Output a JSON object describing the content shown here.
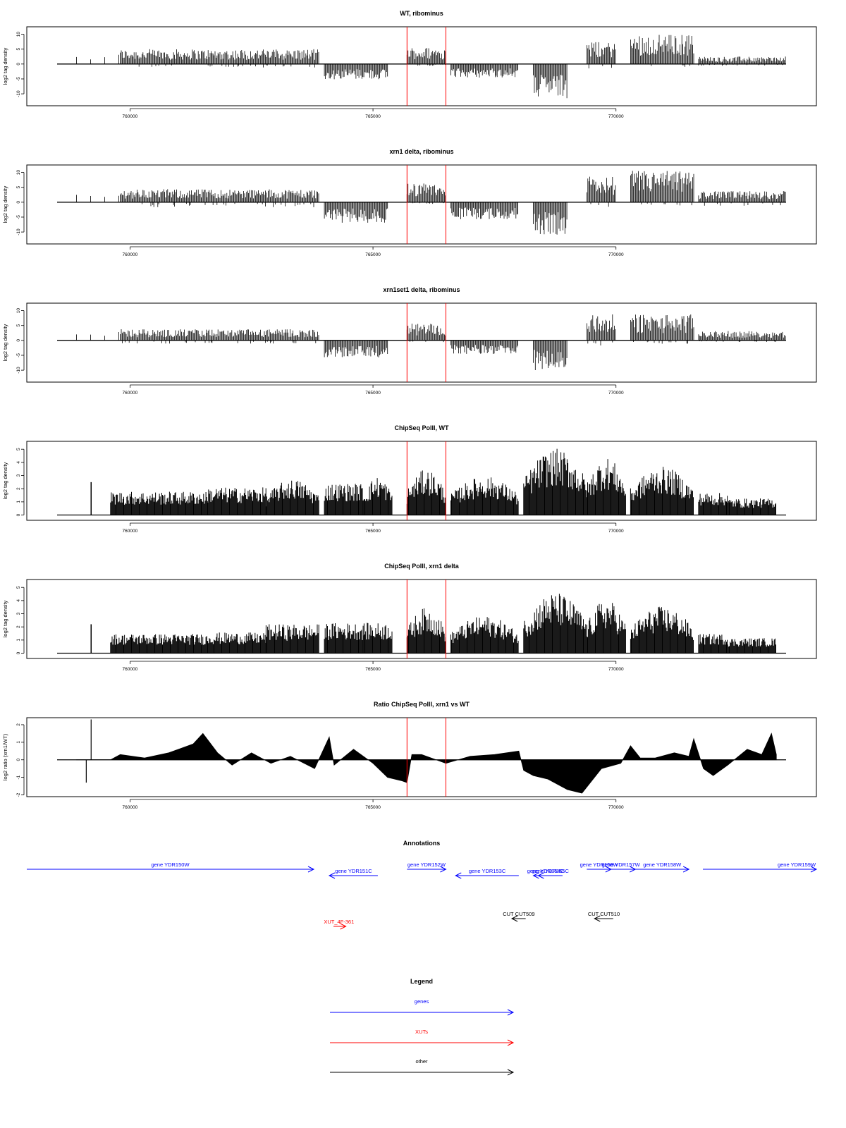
{
  "colors": {
    "signal": "#000000",
    "marker": "#ff0000",
    "genes": "#0000ff",
    "xuts": "#ff0000",
    "other": "#000000"
  },
  "marker_positions": [
    765700,
    766500
  ],
  "chart_data": [
    {
      "type": "bar",
      "title": "WT, ribominus",
      "ylabel": "log2 tag density",
      "xlim": [
        758500,
        773500
      ],
      "ylim": [
        -14,
        12.5
      ],
      "yticks": [
        10,
        5,
        0,
        -5,
        -10
      ],
      "xticks": [
        760000,
        765000,
        770000
      ],
      "regions": [
        {
          "x": [
            758900,
            759800
          ],
          "sense": 2.5,
          "anti": 0
        },
        {
          "x": [
            759800,
            763900
          ],
          "sense": 4,
          "anti": -1
        },
        {
          "x": [
            764000,
            765300
          ],
          "sense": 0,
          "anti": -4.5
        },
        {
          "x": [
            765700,
            766500
          ],
          "sense": 4.5,
          "anti": -0.5
        },
        {
          "x": [
            766600,
            768000
          ],
          "sense": 0,
          "anti": -4
        },
        {
          "x": [
            768300,
            769000
          ],
          "sense": 0,
          "anti": -10
        },
        {
          "x": [
            769400,
            770000
          ],
          "sense": 6,
          "anti": -1.5
        },
        {
          "x": [
            770300,
            771600
          ],
          "sense": 8,
          "anti": -1
        },
        {
          "x": [
            771700,
            773500
          ],
          "sense": 2,
          "anti": -0.5
        }
      ]
    },
    {
      "type": "bar",
      "title": "xrn1 delta, ribominus",
      "ylabel": "log2 tag density",
      "xlim": [
        758500,
        773500
      ],
      "ylim": [
        -14,
        12.5
      ],
      "yticks": [
        10,
        5,
        0,
        -5,
        -10
      ],
      "xticks": [
        760000,
        765000,
        770000
      ],
      "regions": [
        {
          "x": [
            758900,
            759800
          ],
          "sense": 2.5,
          "anti": 0
        },
        {
          "x": [
            759800,
            763900
          ],
          "sense": 3.5,
          "anti": -1.5
        },
        {
          "x": [
            764000,
            765300
          ],
          "sense": 0,
          "anti": -6
        },
        {
          "x": [
            765700,
            766500
          ],
          "sense": 5,
          "anti": -0.5
        },
        {
          "x": [
            766600,
            768000
          ],
          "sense": 0,
          "anti": -5
        },
        {
          "x": [
            768300,
            769000
          ],
          "sense": 0,
          "anti": -9.5
        },
        {
          "x": [
            769400,
            770000
          ],
          "sense": 7,
          "anti": -1.5
        },
        {
          "x": [
            770300,
            771600
          ],
          "sense": 8.5,
          "anti": -1
        },
        {
          "x": [
            771700,
            773500
          ],
          "sense": 3,
          "anti": -1
        }
      ]
    },
    {
      "type": "bar",
      "title": "xrn1set1 delta, ribominus",
      "ylabel": "log2 tag density",
      "xlim": [
        758500,
        773500
      ],
      "ylim": [
        -14,
        12.5
      ],
      "yticks": [
        10,
        5,
        0,
        -5,
        -10
      ],
      "xticks": [
        760000,
        765000,
        770000
      ],
      "regions": [
        {
          "x": [
            758900,
            759800
          ],
          "sense": 2.5,
          "anti": 0
        },
        {
          "x": [
            759800,
            763900
          ],
          "sense": 3,
          "anti": -1
        },
        {
          "x": [
            764000,
            765300
          ],
          "sense": 0,
          "anti": -5
        },
        {
          "x": [
            765700,
            766500
          ],
          "sense": 4.5,
          "anti": -0.5
        },
        {
          "x": [
            766600,
            768000
          ],
          "sense": 0,
          "anti": -4
        },
        {
          "x": [
            768300,
            769000
          ],
          "sense": 0,
          "anti": -9
        },
        {
          "x": [
            769400,
            770000
          ],
          "sense": 7,
          "anti": -1.5
        },
        {
          "x": [
            770300,
            771600
          ],
          "sense": 7,
          "anti": -1
        },
        {
          "x": [
            771700,
            773500
          ],
          "sense": 2.5,
          "anti": -0.5
        }
      ]
    },
    {
      "type": "bar",
      "title": "ChipSeq PolII, WT",
      "ylabel": "log2 tag density",
      "xlim": [
        758500,
        773500
      ],
      "ylim": [
        -0.4,
        5.6
      ],
      "yticks": [
        0,
        1,
        2,
        3,
        4,
        5
      ],
      "xticks": [
        760000,
        765000,
        770000
      ],
      "regions": [
        {
          "x": [
            759600,
            761600
          ],
          "level": 1.7
        },
        {
          "x": [
            761600,
            762800
          ],
          "level": 2.0
        },
        {
          "x": [
            762800,
            763900
          ],
          "level": 2.6
        },
        {
          "x": [
            764000,
            764800
          ],
          "level": 2.3
        },
        {
          "x": [
            764800,
            765400
          ],
          "level": 2.8
        },
        {
          "x": [
            765700,
            766500
          ],
          "level": 3.3
        },
        {
          "x": [
            766600,
            768000
          ],
          "level": 2.8
        },
        {
          "x": [
            768100,
            769400
          ],
          "level": 4.8
        },
        {
          "x": [
            769400,
            770200
          ],
          "level": 4.2
        },
        {
          "x": [
            770300,
            771600
          ],
          "level": 3.5
        },
        {
          "x": [
            771700,
            772300
          ],
          "level": 1.6
        },
        {
          "x": [
            772300,
            773300
          ],
          "level": 1.2
        }
      ],
      "spikes": [
        {
          "x": 759200,
          "y": 2.5
        }
      ]
    },
    {
      "type": "bar",
      "title": "ChipSeq PolII, xrn1 delta",
      "ylabel": "log2 tag density",
      "xlim": [
        758500,
        773500
      ],
      "ylim": [
        -0.4,
        5.6
      ],
      "yticks": [
        0,
        1,
        2,
        3,
        4,
        5
      ],
      "xticks": [
        760000,
        765000,
        770000
      ],
      "regions": [
        {
          "x": [
            759600,
            761600
          ],
          "level": 1.4
        },
        {
          "x": [
            761600,
            762800
          ],
          "level": 1.5
        },
        {
          "x": [
            762800,
            763900
          ],
          "level": 2.1
        },
        {
          "x": [
            764000,
            764800
          ],
          "level": 2.2
        },
        {
          "x": [
            764800,
            765400
          ],
          "level": 2.2
        },
        {
          "x": [
            765700,
            766500
          ],
          "level": 3.3
        },
        {
          "x": [
            766600,
            768000
          ],
          "level": 2.7
        },
        {
          "x": [
            768100,
            769400
          ],
          "level": 4.4
        },
        {
          "x": [
            769400,
            770200
          ],
          "level": 3.9
        },
        {
          "x": [
            770300,
            771600
          ],
          "level": 3.4
        },
        {
          "x": [
            771700,
            772300
          ],
          "level": 1.4
        },
        {
          "x": [
            772300,
            773300
          ],
          "level": 1.1
        }
      ],
      "spikes": [
        {
          "x": 759200,
          "y": 2.2
        }
      ]
    },
    {
      "type": "area",
      "title": "Ratio ChipSeq PolII, xrn1 vs WT",
      "ylabel": "log2 ratio (xrn1/WT)",
      "xlim": [
        758500,
        773500
      ],
      "ylim": [
        -2.1,
        2.4
      ],
      "yticks": [
        2,
        1,
        0,
        -1,
        -2
      ],
      "xticks": [
        760000,
        765000,
        770000
      ],
      "x": [
        758900,
        759600,
        759800,
        760300,
        760800,
        761300,
        761500,
        761800,
        762100,
        762500,
        762900,
        763300,
        763800,
        764100,
        764200,
        764600,
        765000,
        765300,
        765600,
        765700,
        765800,
        766000,
        766500,
        767000,
        767500,
        768000,
        768100,
        768300,
        768600,
        769000,
        769300,
        769700,
        770100,
        770300,
        770500,
        770800,
        771200,
        771500,
        771600,
        771800,
        772000,
        772300,
        772700,
        773000,
        773200,
        773300
      ],
      "y": [
        0,
        0,
        0.3,
        0.1,
        0.4,
        0.9,
        1.5,
        0.4,
        -0.3,
        0.4,
        -0.2,
        0.2,
        -0.5,
        1.3,
        -0.3,
        0.6,
        -0.2,
        -1.0,
        -1.2,
        -1.3,
        0.3,
        0.3,
        -0.2,
        0.2,
        0.3,
        0.5,
        -0.6,
        -0.9,
        -1.1,
        -1.7,
        -1.9,
        -0.5,
        -0.2,
        0.8,
        0.1,
        0.1,
        0.4,
        0.2,
        1.2,
        -0.5,
        -0.9,
        -0.3,
        0.6,
        0.3,
        1.5,
        0.3
      ]
    }
  ],
  "annotations": {
    "title": "Annotations",
    "genes": [
      {
        "label": "gene YDR150W",
        "x": [
          758500,
          764400
        ],
        "strand": "+",
        "row": 0
      },
      {
        "label": "gene YDR151C",
        "x": [
          764100,
          765100
        ],
        "strand": "-",
        "row": 1
      },
      {
        "label": "gene YDR152W",
        "x": [
          765700,
          766500
        ],
        "strand": "+",
        "row": 0
      },
      {
        "label": "gene YDR153C",
        "x": [
          766700,
          768000
        ],
        "strand": "-",
        "row": 1
      },
      {
        "label": "gene YDR154C",
        "x": [
          768300,
          768800
        ],
        "strand": "-",
        "row": 1
      },
      {
        "label": "gene YDR155C",
        "x": [
          768400,
          768900
        ],
        "strand": "-",
        "row": 1
      },
      {
        "label": "gene YDR156W",
        "x": [
          769400,
          769900
        ],
        "strand": "+",
        "row": 0
      },
      {
        "label": "gene YDR157W",
        "x": [
          769800,
          770400
        ],
        "strand": "+",
        "row": 0
      },
      {
        "label": "gene YDR158W",
        "x": [
          770400,
          771500
        ],
        "strand": "+",
        "row": 0
      },
      {
        "label": "gene YDR159W",
        "x": [
          771900,
          773500
        ],
        "strand": "+",
        "row": 0
      }
    ],
    "xuts": [
      {
        "label": "XUT_4F-361",
        "x": [
          764100,
          764500
        ],
        "strand": "+"
      }
    ],
    "other": [
      {
        "label": "CUT CUT509",
        "x": [
          767800,
          768200
        ],
        "strand": "-"
      },
      {
        "label": "CUT CUT510",
        "x": [
          769500,
          770000
        ],
        "strand": "-"
      }
    ]
  },
  "legend": {
    "title": "Legend",
    "items": [
      {
        "label": "genes",
        "color": "#0000ff"
      },
      {
        "label": "XUTs",
        "color": "#ff0000"
      },
      {
        "label": "other",
        "color": "#000000"
      }
    ]
  }
}
